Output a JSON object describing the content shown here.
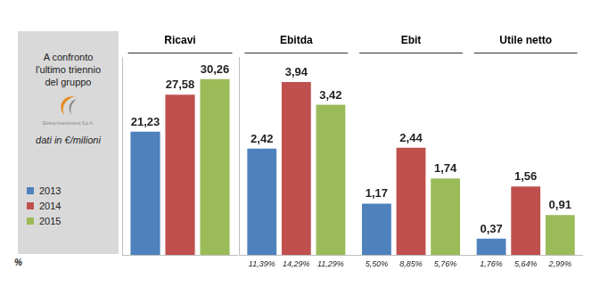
{
  "panel": {
    "title_lines": [
      "A confronto",
      "l'ultimo triennio",
      "del gruppo"
    ],
    "logo_text": "Elettra Investimenti S.p.A.",
    "units": "dati in €/milioni"
  },
  "row_label": "%",
  "chart_data": [
    {
      "type": "bar",
      "categories": [
        "Ricavi"
      ],
      "series": [
        {
          "name": "2013",
          "color": "#4f81bd",
          "values": [
            21.23
          ],
          "value_labels": [
            "21,23"
          ]
        },
        {
          "name": "2014",
          "color": "#c0504d",
          "values": [
            27.58
          ],
          "value_labels": [
            "27,58"
          ]
        },
        {
          "name": "2015",
          "color": "#9bbb59",
          "values": [
            30.26
          ],
          "value_labels": [
            "30,26"
          ]
        }
      ],
      "ylim": [
        0,
        34
      ],
      "tick_labels": "x",
      "grid": false,
      "data_labels": true
    },
    {
      "type": "bar",
      "categories": [
        "Ebitda",
        "Ebit",
        "Utile netto"
      ],
      "series": [
        {
          "name": "2013",
          "color": "#4f81bd",
          "values": [
            2.42,
            1.17,
            0.37
          ],
          "value_labels": [
            "2,42",
            "1,17",
            "0,37"
          ],
          "margins": [
            11.39,
            5.5,
            1.76
          ],
          "margin_labels": [
            "11,39%",
            "5,50%",
            "1,76%"
          ]
        },
        {
          "name": "2014",
          "color": "#c0504d",
          "values": [
            3.94,
            2.44,
            1.56
          ],
          "value_labels": [
            "3,94",
            "2,44",
            "1,56"
          ],
          "margins": [
            14.29,
            8.85,
            5.64
          ],
          "margin_labels": [
            "14,29%",
            "8,85%",
            "5,64%"
          ]
        },
        {
          "name": "2015",
          "color": "#9bbb59",
          "values": [
            3.42,
            1.74,
            0.91
          ],
          "value_labels": [
            "3,42",
            "1,74",
            "0,91"
          ],
          "margins": [
            11.29,
            5.76,
            2.99
          ],
          "margin_labels": [
            "11,29%",
            "5,76%",
            "2,99%"
          ]
        }
      ],
      "ylim": [
        0,
        4.5
      ],
      "tick_labels": "x",
      "grid": false,
      "data_labels": true
    }
  ]
}
